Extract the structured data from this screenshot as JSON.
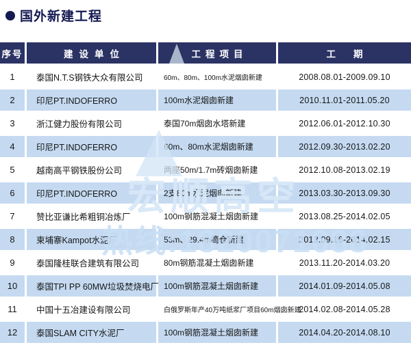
{
  "title": {
    "text": "国外新建工程"
  },
  "table": {
    "headers": [
      "序号",
      "建设单位",
      "工程项目",
      "工期"
    ],
    "rows": [
      {
        "no": "1",
        "unit": "泰国N.T.S钢铁大众有限公司",
        "project": "60m、80m、100m水泥烟囱新建",
        "period": "2008.08.01-2009.09.10"
      },
      {
        "no": "2",
        "unit": "印尼PT.INDOFERRO",
        "project": "100m水泥烟囱新建",
        "period": "2010.11.01-2011.05.20"
      },
      {
        "no": "3",
        "unit": "浙江健力股份有限公司",
        "project": "泰国70m烟囱水塔新建",
        "period": "2012.06.01-2012.10.30"
      },
      {
        "no": "4",
        "unit": "印尼PT.INDOFERRO",
        "project": "60m、80m水泥烟囱新建",
        "period": "2012.09.30-2013.02.20"
      },
      {
        "no": "5",
        "unit": "越南高平钢铁股份公司",
        "project": "两座50m/1.7m砖烟囱新建",
        "period": "2012.10.08-2013.02.19"
      },
      {
        "no": "6",
        "unit": "印尼PT.INDOFERRO",
        "project": "2支80m水泥烟囱新建",
        "period": "2013.03.30-2013.09.30"
      },
      {
        "no": "7",
        "unit": "赞比亚谦比希粗铜冶炼厂",
        "project": "100m钢筋混凝土烟囱新建",
        "period": "2013.08.25-2014.02.05"
      },
      {
        "no": "8",
        "unit": "柬埔寨Kampot水泥厂",
        "project": "53m、29.4m筒仓新建",
        "period": "2013.09.16-2014.02.15"
      },
      {
        "no": "9",
        "unit": "泰国隆桂联合建筑有限公司",
        "project": "80m钢筋混凝土烟囱新建",
        "period": "2013.11.20-2014.03.20"
      },
      {
        "no": "10",
        "unit": "泰国TPI PP 60MW垃圾焚烧电厂",
        "project": "100m钢筋混凝土烟囱新建",
        "period": "2014.01.09-2014.05.08"
      },
      {
        "no": "11",
        "unit": "中国十五冶建设有限公司",
        "project": "白俄罗斯年产40万吨纸浆厂项目60m烟囱新建",
        "period": "2014.02.08-2014.05.28"
      },
      {
        "no": "12",
        "unit": "泰国SLAM CITY水泥厂",
        "project": "100m钢筋混凝土烟囱新建",
        "period": "2014.04.20-2014.08.10"
      }
    ]
  },
  "watermark": {
    "line1": "宏顺高空",
    "line2": "热线:1820071688"
  },
  "colors": {
    "header_bg": "#2b3364",
    "row_alt_bg": "#c5daf1",
    "title_text": "#141a52",
    "body_text": "#161616",
    "watermark": "#c7def4"
  }
}
